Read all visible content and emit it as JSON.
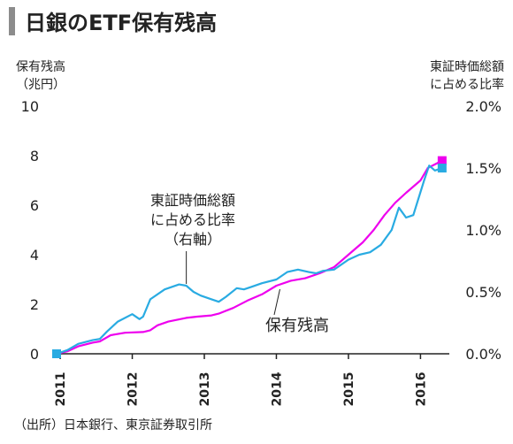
{
  "title": "日銀のETF保有残高",
  "source": "（出所）日本銀行、東京証券取引所",
  "chart_data": {
    "type": "line",
    "left_axis": {
      "label_lines": [
        "保有残高",
        "（兆円）"
      ],
      "ylim": [
        0,
        10
      ],
      "ticks": [
        0,
        2,
        4,
        6,
        8,
        10
      ],
      "tick_labels": [
        "0",
        "2",
        "4",
        "6",
        "8",
        "10"
      ]
    },
    "right_axis": {
      "label_lines": [
        "東証時価総額",
        "に占める比率"
      ],
      "ylim": [
        0,
        2.0
      ],
      "ticks": [
        0,
        0.5,
        1.0,
        1.5,
        2.0
      ],
      "tick_labels": [
        "0.0%",
        "0.5%",
        "1.0%",
        "1.5%",
        "2.0%"
      ]
    },
    "x_axis": {
      "xlim": [
        2010.95,
        2016.4
      ],
      "ticks": [
        2011,
        2012,
        2013,
        2014,
        2015,
        2016
      ],
      "tick_labels": [
        "2011",
        "2012",
        "2013",
        "2014",
        "2015",
        "2016"
      ]
    },
    "series": [
      {
        "name": "保有残高",
        "axis": "left",
        "color": "#ee00ee",
        "annotation": "保有残高",
        "points": [
          [
            2010.95,
            0.0
          ],
          [
            2011.1,
            0.1
          ],
          [
            2011.25,
            0.3
          ],
          [
            2011.45,
            0.45
          ],
          [
            2011.55,
            0.5
          ],
          [
            2011.7,
            0.75
          ],
          [
            2011.9,
            0.85
          ],
          [
            2012.15,
            0.88
          ],
          [
            2012.25,
            0.95
          ],
          [
            2012.35,
            1.15
          ],
          [
            2012.5,
            1.3
          ],
          [
            2012.75,
            1.45
          ],
          [
            2012.9,
            1.5
          ],
          [
            2013.1,
            1.55
          ],
          [
            2013.2,
            1.62
          ],
          [
            2013.4,
            1.85
          ],
          [
            2013.6,
            2.15
          ],
          [
            2013.8,
            2.4
          ],
          [
            2014.0,
            2.75
          ],
          [
            2014.2,
            2.95
          ],
          [
            2014.4,
            3.05
          ],
          [
            2014.6,
            3.25
          ],
          [
            2014.8,
            3.5
          ],
          [
            2015.0,
            4.0
          ],
          [
            2015.2,
            4.5
          ],
          [
            2015.35,
            5.0
          ],
          [
            2015.5,
            5.6
          ],
          [
            2015.65,
            6.1
          ],
          [
            2015.8,
            6.5
          ],
          [
            2016.0,
            7.0
          ],
          [
            2016.1,
            7.5
          ],
          [
            2016.3,
            7.8
          ]
        ],
        "end_marker": true
      },
      {
        "name": "東証時価総額に占める比率",
        "axis": "right",
        "color": "#29abe2",
        "annotation": "東証時価総額\nに占める比率\n（右軸）",
        "points": [
          [
            2010.95,
            0.0
          ],
          [
            2011.1,
            0.03
          ],
          [
            2011.25,
            0.08
          ],
          [
            2011.45,
            0.11
          ],
          [
            2011.55,
            0.12
          ],
          [
            2011.65,
            0.18
          ],
          [
            2011.8,
            0.26
          ],
          [
            2012.0,
            0.32
          ],
          [
            2012.1,
            0.28
          ],
          [
            2012.15,
            0.3
          ],
          [
            2012.25,
            0.44
          ],
          [
            2012.45,
            0.52
          ],
          [
            2012.65,
            0.56
          ],
          [
            2012.75,
            0.55
          ],
          [
            2012.85,
            0.5
          ],
          [
            2012.95,
            0.47
          ],
          [
            2013.1,
            0.44
          ],
          [
            2013.2,
            0.42
          ],
          [
            2013.3,
            0.46
          ],
          [
            2013.45,
            0.53
          ],
          [
            2013.55,
            0.52
          ],
          [
            2013.65,
            0.54
          ],
          [
            2013.8,
            0.57
          ],
          [
            2014.0,
            0.6
          ],
          [
            2014.15,
            0.66
          ],
          [
            2014.3,
            0.68
          ],
          [
            2014.45,
            0.66
          ],
          [
            2014.55,
            0.65
          ],
          [
            2014.65,
            0.67
          ],
          [
            2014.8,
            0.68
          ],
          [
            2014.9,
            0.72
          ],
          [
            2015.0,
            0.76
          ],
          [
            2015.15,
            0.8
          ],
          [
            2015.3,
            0.82
          ],
          [
            2015.45,
            0.88
          ],
          [
            2015.6,
            1.0
          ],
          [
            2015.7,
            1.18
          ],
          [
            2015.8,
            1.1
          ],
          [
            2015.9,
            1.12
          ],
          [
            2016.05,
            1.4
          ],
          [
            2016.12,
            1.52
          ],
          [
            2016.2,
            1.48
          ],
          [
            2016.3,
            1.5
          ]
        ],
        "end_marker": true
      }
    ]
  }
}
